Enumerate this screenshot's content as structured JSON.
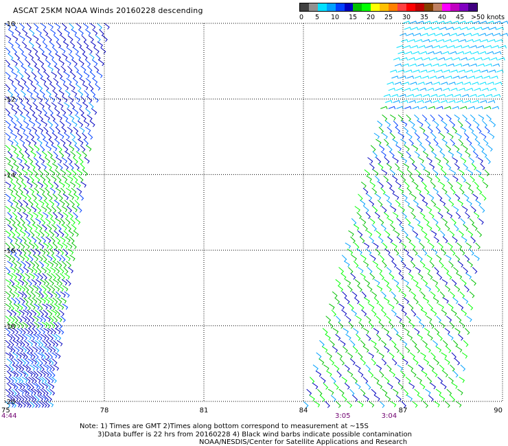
{
  "title": "ASCAT 25KM NOAA Winds 20160228 descending",
  "legend": {
    "colors": [
      "#404040",
      "#909090",
      "#00e0ff",
      "#00a0ff",
      "#0040ff",
      "#0000c0",
      "#00c000",
      "#00ff00",
      "#ffff00",
      "#ffc000",
      "#ff8000",
      "#ff4040",
      "#ff0000",
      "#c00000",
      "#804000",
      "#c08060",
      "#ff00ff",
      "#c000c0",
      "#8000c0",
      "#400080"
    ],
    "labels": [
      "0",
      "5",
      "10",
      "15",
      "20",
      "25",
      "30",
      "35",
      "40",
      "45",
      ">50 knots"
    ]
  },
  "map": {
    "lon_range": [
      75,
      90
    ],
    "lat_range": [
      -10,
      -20
    ],
    "x_ticks": [
      "75",
      "78",
      "81",
      "84",
      "87",
      "90"
    ],
    "y_ticks": [
      "-10",
      "-12",
      "-14",
      "-16",
      "-18",
      "-20"
    ],
    "pass_times": [
      {
        "label": "4:44",
        "lon": 75.0
      },
      {
        "label": "3:05",
        "lon": 85.2
      },
      {
        "label": "3:04",
        "lon": 86.6
      }
    ],
    "swaths": [
      {
        "name": "west",
        "lon_top": [
          75.0,
          78.0
        ],
        "lon_bottom": [
          75.0,
          76.3
        ]
      },
      {
        "name": "east",
        "lon_top": [
          87.0,
          90.0
        ],
        "lon_bottom": [
          84.0,
          88.6
        ]
      }
    ]
  },
  "notes": [
    "Note: 1) Times are GMT 2)Times along bottom correspond to measurement at ~15S",
    "3)Data buffer is 22 hrs from 20160228 4) Black wind barbs indicate possible contamination",
    "NOAA/NESDIS/Center for Satellite Applications and Research"
  ]
}
